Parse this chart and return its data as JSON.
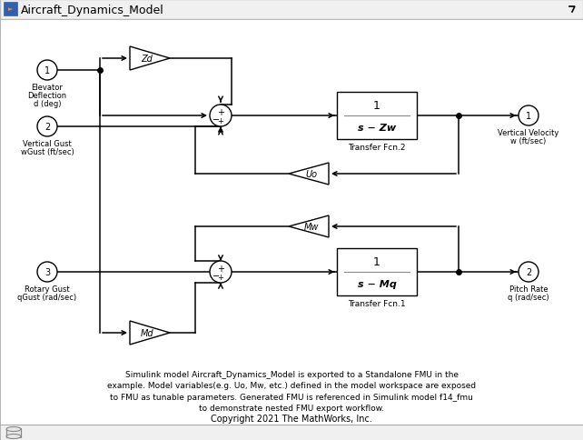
{
  "title": "Aircraft_Dynamics_Model",
  "footer_text": "Simulink model Aircraft_Dynamics_Model is exported to a Standalone FMU in the\nexample. Model variables(e.g. Uo, Mw, etc.) defined in the model workspace are exposed\nto FMU as tunable parameters. Generated FMU is referenced in Simulink model f14_fmu\nto demonstrate nested FMU export workflow.",
  "copyright_text": "Copyright 2021 The MathWorks, Inc."
}
